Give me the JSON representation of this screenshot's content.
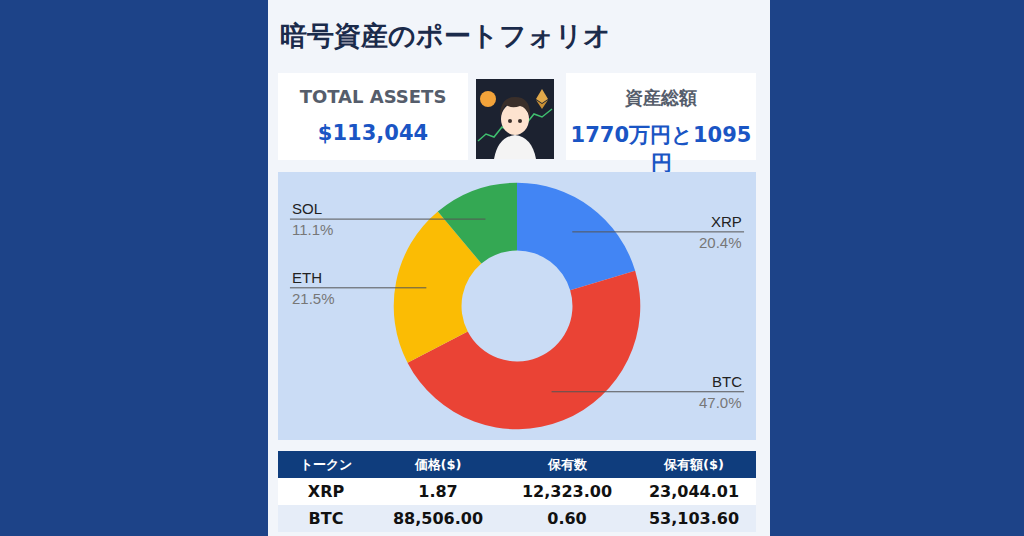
{
  "header": {
    "title": "暗号資産のポートフォリオ"
  },
  "cards": [
    {
      "label": "TOTAL ASSETS",
      "value": "$113,044"
    },
    {
      "label": "資産総額",
      "value": "1770万円と1095円"
    }
  ],
  "chart_data": {
    "type": "donut",
    "categories": [
      "XRP",
      "BTC",
      "ETH",
      "SOL"
    ],
    "values": [
      20.4,
      47.0,
      21.5,
      11.1
    ],
    "value_labels": [
      "20.4%",
      "47.0%",
      "21.5%",
      "11.1%"
    ],
    "colors": [
      "#4285f4",
      "#ea4335",
      "#fbbc04",
      "#34a853"
    ],
    "data_labels": true
  },
  "table": {
    "header": [
      "トークン",
      "価格($)",
      "保有数",
      "保有額($)"
    ],
    "rows": [
      [
        "XRP",
        "1.87",
        "12,323.00",
        "23,044.01"
      ],
      [
        "BTC",
        "88,506.00",
        "0.60",
        "53,103.60"
      ]
    ]
  }
}
